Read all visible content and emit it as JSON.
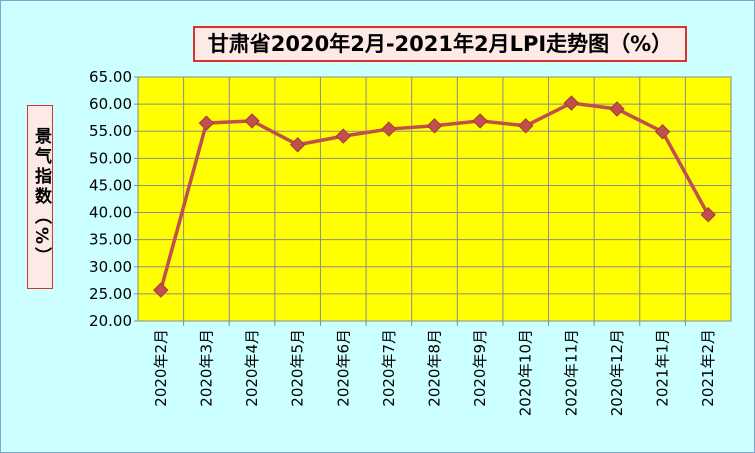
{
  "chart_data": {
    "type": "line",
    "title": "甘肃省2020年2月-2021年2月LPI走势图（%）",
    "y_label": "景气指数（%）",
    "categories": [
      "2020年2月",
      "2020年3月",
      "2020年4月",
      "2020年5月",
      "2020年6月",
      "2020年7月",
      "2020年8月",
      "2020年9月",
      "2020年10月",
      "2020年11月",
      "2020年12月",
      "2021年1月",
      "2021年2月"
    ],
    "series": [
      {
        "color": "#c0504d",
        "values": [
          25.7,
          56.5,
          56.9,
          52.5,
          54.1,
          55.4,
          56.0,
          56.9,
          56.0,
          60.2,
          59.1,
          54.9,
          39.6
        ]
      }
    ],
    "ylim": [
      20,
      65
    ],
    "yticks": [
      {
        "value": 20,
        "label": "20.00"
      },
      {
        "value": 25,
        "label": "25.00"
      },
      {
        "value": 30,
        "label": "30.00"
      },
      {
        "value": 35,
        "label": "35.00"
      },
      {
        "value": 40,
        "label": "40.00"
      },
      {
        "value": 45,
        "label": "45.00"
      },
      {
        "value": 50,
        "label": "50.00"
      },
      {
        "value": 55,
        "label": "55.00"
      },
      {
        "value": 60,
        "label": "60.00"
      },
      {
        "value": 65,
        "label": "65.00"
      }
    ],
    "grid": true,
    "plot_color": "#ffff00"
  }
}
